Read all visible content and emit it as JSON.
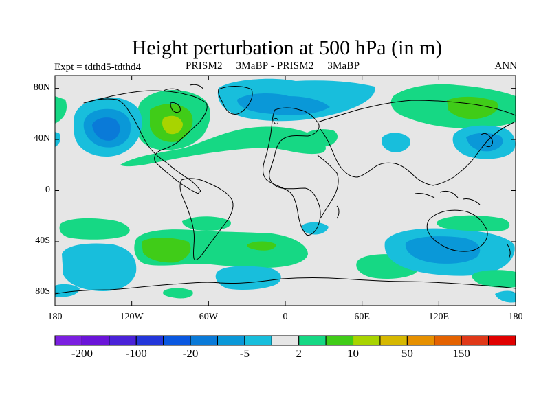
{
  "header": {
    "title": "Height perturbation at 500 hPa (in m)",
    "left_label": "Expt = tdthd5-tdthd4",
    "center_label": "PRISM2     3MaBP - PRISM2     3MaBP",
    "right_label": "ANN"
  },
  "map": {
    "projection": "cylindrical equidistant",
    "land_outlines": true,
    "background_color": "#e6e6e6",
    "lat_ticks": [
      {
        "value": 80,
        "label": "80N"
      },
      {
        "value": 40,
        "label": "40N"
      },
      {
        "value": 0,
        "label": "0"
      },
      {
        "value": -40,
        "label": "40S"
      },
      {
        "value": -80,
        "label": "80S"
      }
    ],
    "lon_ticks": [
      {
        "value": -180,
        "label": "180"
      },
      {
        "value": -120,
        "label": "120W"
      },
      {
        "value": -60,
        "label": "60W"
      },
      {
        "value": 0,
        "label": "0"
      },
      {
        "value": 60,
        "label": "60E"
      },
      {
        "value": 120,
        "label": "120E"
      },
      {
        "value": 180,
        "label": "180"
      }
    ]
  },
  "colorbar": {
    "colors": [
      "#7b1fe0",
      "#6a14d8",
      "#4a22d8",
      "#2336da",
      "#0a58e0",
      "#0a7ad8",
      "#0a98d8",
      "#18bedc",
      "#e6e6e6",
      "#16d884",
      "#40cc18",
      "#a8d400",
      "#d6b800",
      "#e69000",
      "#e46200",
      "#e03818",
      "#e00000"
    ],
    "labels": [
      {
        "index": 1,
        "text": "-200"
      },
      {
        "index": 3,
        "text": "-100"
      },
      {
        "index": 5,
        "text": "-20"
      },
      {
        "index": 7,
        "text": "-5"
      },
      {
        "index": 9,
        "text": "2"
      },
      {
        "index": 11,
        "text": "10"
      },
      {
        "index": 13,
        "text": "50"
      },
      {
        "index": 15,
        "text": "150"
      }
    ]
  }
}
